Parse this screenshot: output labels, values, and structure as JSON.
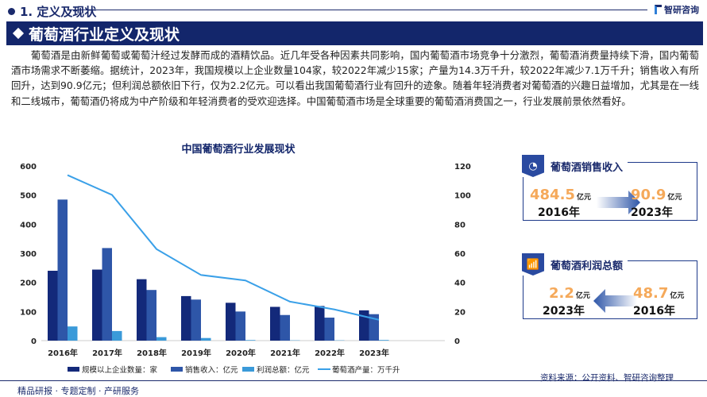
{
  "header": {
    "section": "1. 定义及现状",
    "logo": "智研咨询",
    "banner": "葡萄酒行业定义及现状"
  },
  "paragraph": "葡萄酒是由新鲜葡萄或葡萄汁经过发酵而成的酒精饮品。近几年受各种因素共同影响，国内葡萄酒市场竞争十分激烈，葡萄酒消费量持续下滑，国内葡萄酒市场需求不断萎缩。据统计，2023年，我国规模以上企业数量104家，较2022年减少15家；产量为14.3万千升，较2022年减少7.1万千升；销售收入有所回升，达到90.9亿元；但利润总额依旧下行，仅为2.2亿元。可以看出我国葡萄酒行业有回升的迹象。随着年轻消费者对葡萄酒的兴趣日益增加，尤其是在一线和二线城市，葡萄酒仍将成为中产阶级和年轻消费者的受欢迎选择。中国葡萄酒市场是全球重要的葡萄酒消费国之一，行业发展前景依然看好。",
  "chart_data": {
    "type": "bar",
    "title": "中国葡萄酒行业发展现状",
    "categories": [
      "2016年",
      "2017年",
      "2018年",
      "2019年",
      "2020年",
      "2021年",
      "2022年",
      "2023年"
    ],
    "ylim": [
      0,
      600
    ],
    "y2lim": [
      0,
      120
    ],
    "yticks": [
      0,
      100,
      200,
      300,
      400,
      500,
      600
    ],
    "y2ticks": [
      0,
      20,
      40,
      60,
      80,
      100,
      120
    ],
    "grid": false,
    "legend": "bottom",
    "series": [
      {
        "name": "规模以上企业数量：家",
        "type": "bar",
        "axis": "left",
        "color": "#13297a",
        "values": [
          240,
          244,
          211,
          153,
          130,
          116,
          119,
          104
        ]
      },
      {
        "name": "销售收入：亿元",
        "type": "bar",
        "axis": "left",
        "color": "#2e56a8",
        "values": [
          484.5,
          318,
          174,
          141,
          100,
          88,
          79,
          90.9
        ]
      },
      {
        "name": "利润总额：亿元",
        "type": "bar",
        "axis": "left",
        "color": "#3a9ad9",
        "values": [
          48.7,
          33,
          12,
          9,
          2,
          1,
          1,
          2.2
        ]
      },
      {
        "name": "葡萄酒产量：万千升",
        "type": "line",
        "axis": "right",
        "color": "#3aa0e8",
        "values": [
          113.7,
          100.1,
          62.9,
          45.1,
          41.3,
          26.8,
          21.4,
          14.3
        ]
      }
    ]
  },
  "cards": [
    {
      "title": "葡萄酒销售收入",
      "icon": "pie-chart-icon",
      "from_value": "484.5",
      "from_unit": "亿元",
      "from_year": "2016年",
      "to_value": "90.9",
      "to_unit": "亿元",
      "to_year": "2023年"
    },
    {
      "title": "葡萄酒利润总额",
      "icon": "bar-growth-icon",
      "left_value": "2.2",
      "left_unit": "亿元",
      "left_year": "2023年",
      "right_value": "48.7",
      "right_unit": "亿元",
      "right_year": "2016年"
    }
  ],
  "footer": {
    "tagline": "精品研报 · 专题定制 · 产研服务",
    "source": "资料来源：公开资料、智研咨询整理"
  }
}
